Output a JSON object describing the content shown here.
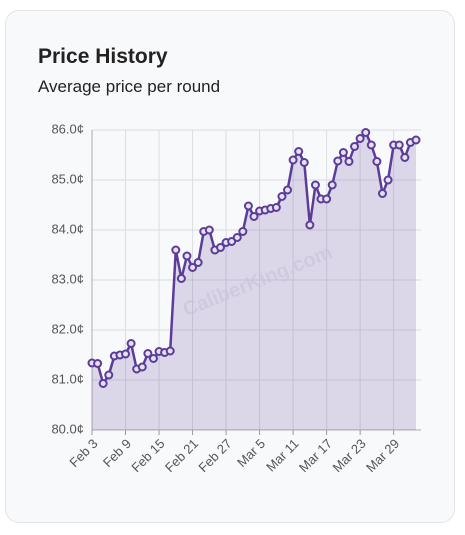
{
  "chart_data": {
    "type": "line",
    "title": "Price History",
    "subtitle": "Average price per round",
    "watermark": "CaliberKing.com",
    "categories": [
      "Feb 3",
      null,
      null,
      null,
      null,
      null,
      "Feb 9",
      null,
      null,
      null,
      null,
      null,
      "Feb 15",
      null,
      null,
      null,
      null,
      null,
      "Feb 21",
      null,
      null,
      null,
      null,
      null,
      "Feb 27",
      null,
      null,
      null,
      null,
      null,
      "Mar 5",
      null,
      null,
      null,
      null,
      null,
      "Mar 11",
      null,
      null,
      null,
      null,
      null,
      "Mar 17",
      null,
      null,
      null,
      null,
      null,
      "Mar 23",
      null,
      null,
      null,
      null,
      null,
      "Mar 29",
      null,
      null,
      null,
      null
    ],
    "values": [
      81.34,
      81.33,
      80.93,
      81.1,
      81.48,
      81.5,
      81.52,
      81.73,
      81.22,
      81.26,
      81.53,
      81.43,
      81.57,
      81.55,
      81.58,
      83.6,
      83.03,
      83.48,
      83.25,
      83.35,
      83.97,
      84.0,
      83.6,
      83.65,
      83.75,
      83.77,
      83.85,
      83.97,
      84.48,
      84.27,
      84.38,
      84.4,
      84.43,
      84.45,
      84.67,
      84.8,
      85.4,
      85.57,
      85.35,
      84.1,
      84.9,
      84.62,
      84.62,
      84.9,
      85.38,
      85.55,
      85.37,
      85.67,
      85.83,
      85.95,
      85.7,
      85.37,
      84.73,
      85.0,
      85.7,
      85.7,
      85.45,
      85.75,
      85.8
    ],
    "color": "#5b3d99",
    "ylim": [
      80,
      86
    ],
    "yticks": [
      {
        "value": 80,
        "label": "80.0¢"
      },
      {
        "value": 81,
        "label": "81.0¢"
      },
      {
        "value": 82,
        "label": "82.0¢"
      },
      {
        "value": 83,
        "label": "83.0¢"
      },
      {
        "value": 84,
        "label": "84.0¢"
      },
      {
        "value": 85,
        "label": "85.0¢"
      },
      {
        "value": 86,
        "label": "86.0¢"
      }
    ],
    "grid": true
  }
}
